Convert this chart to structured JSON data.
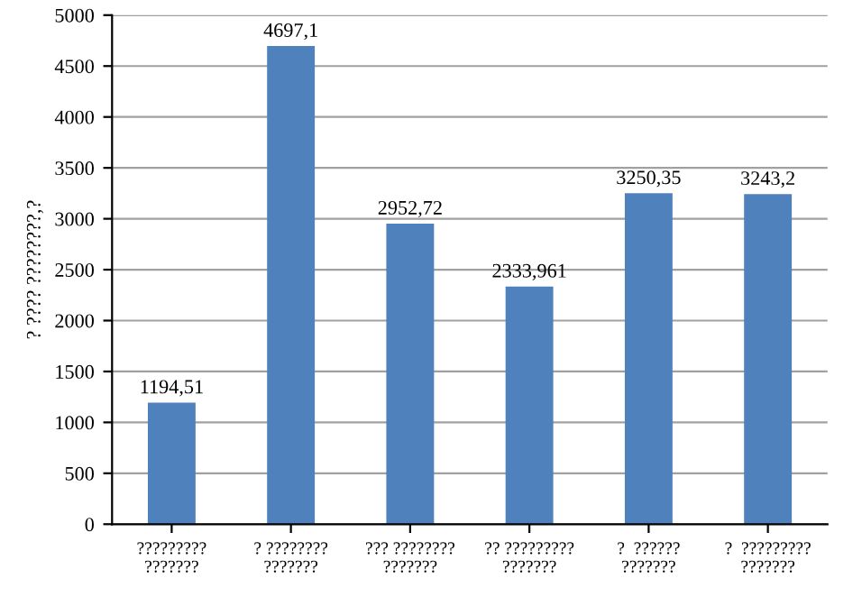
{
  "chart_data": {
    "type": "bar",
    "ylabel": "? ???? ????????,?",
    "categories": [
      "?????????\n???????",
      "? ????????\n???????",
      "??? ????????\n???????",
      "?? ?????????\n???????",
      "?  ??????\n???????",
      "?  ?????????\n???????"
    ],
    "values": [
      1194.51,
      4697.1,
      2952.72,
      2333.961,
      3250.35,
      3243.2
    ],
    "value_labels": [
      "1194,51",
      "4697,1",
      "2952,72",
      "2333,961",
      "3250,35",
      "3243,2"
    ],
    "color": "#4f81bd",
    "ylim": [
      0,
      5000
    ],
    "yticks": [
      0,
      500,
      1000,
      1500,
      2000,
      2500,
      3000,
      3500,
      4000,
      4500,
      5000
    ],
    "grid": "y",
    "legend": false
  }
}
